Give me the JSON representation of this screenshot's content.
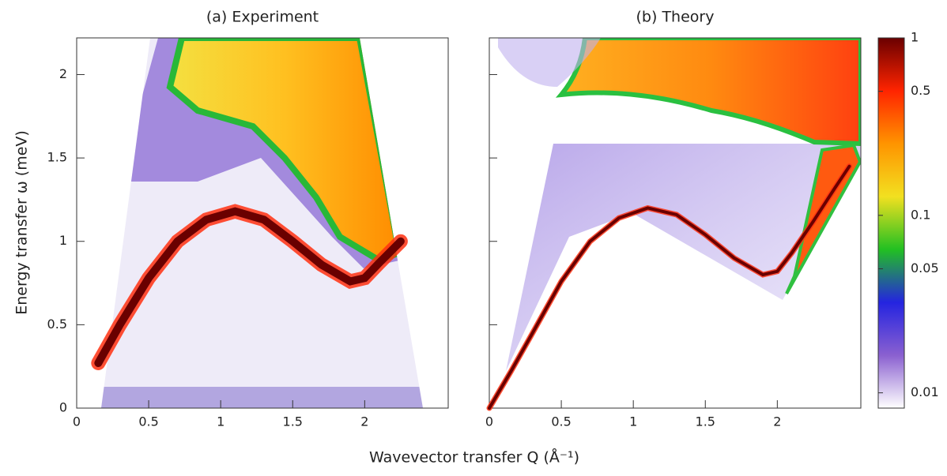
{
  "xlabel": "Wavevector transfer Q (Å⁻¹)",
  "ylabel": "Energy transfer ω (meV)",
  "chart_data": [
    {
      "type": "line",
      "title": "(a) Experiment",
      "x": [
        0.15,
        0.3,
        0.5,
        0.7,
        0.9,
        1.1,
        1.3,
        1.5,
        1.7,
        1.9,
        2.0,
        2.1,
        2.25
      ],
      "values": [
        0.27,
        0.5,
        0.78,
        1.0,
        1.13,
        1.18,
        1.13,
        1.0,
        0.86,
        0.76,
        0.78,
        0.87,
        1.0
      ],
      "color": "#6a0000",
      "xlim": [
        0,
        2.58
      ],
      "xticks": [
        0,
        0.5,
        1,
        1.5,
        2
      ],
      "ylim": [
        0,
        2.22
      ],
      "yticks": [
        0,
        0.5,
        1,
        1.5,
        2
      ]
    },
    {
      "type": "line",
      "title": "(b) Theory",
      "x": [
        0,
        0.15,
        0.3,
        0.5,
        0.7,
        0.9,
        1.1,
        1.3,
        1.5,
        1.7,
        1.9,
        2.0,
        2.1,
        2.25,
        2.4,
        2.5
      ],
      "values": [
        0,
        0.22,
        0.45,
        0.76,
        1.0,
        1.14,
        1.2,
        1.16,
        1.04,
        0.9,
        0.8,
        0.82,
        0.93,
        1.12,
        1.32,
        1.45
      ],
      "color": "#6a0000",
      "xlim": [
        0,
        2.58
      ],
      "xticks": [
        0,
        0.5,
        1,
        1.5,
        2
      ],
      "ylim": [
        0,
        2.22
      ],
      "yticks": [
        0,
        0.5,
        1,
        1.5,
        2
      ],
      "colorbar": {
        "scale": "log",
        "lim": [
          0.0082,
          1
        ],
        "ticks": [
          1,
          0.5,
          0.1,
          0.05,
          0.01
        ],
        "colors": [
          "#ffffff",
          "#8a60d0",
          "#2424e0",
          "#22c022",
          "#f2e020",
          "#ff9400",
          "#ff2400",
          "#6a0000"
        ]
      }
    }
  ]
}
